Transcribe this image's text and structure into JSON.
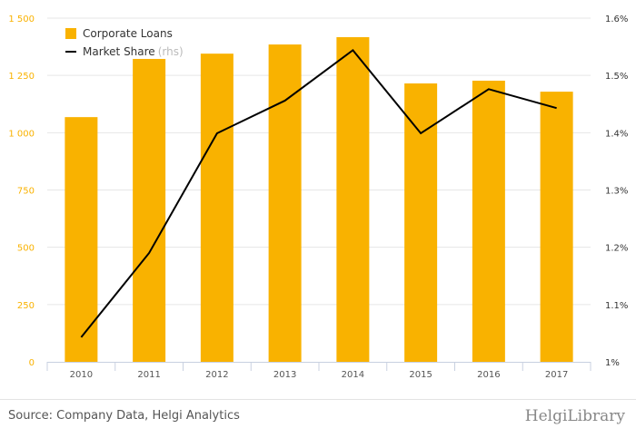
{
  "chart_data": {
    "type": "bar",
    "categories": [
      "2010",
      "2011",
      "2012",
      "2013",
      "2014",
      "2015",
      "2016",
      "2017"
    ],
    "series": [
      {
        "name": "Corporate Loans",
        "type": "bar",
        "axis": "left",
        "color": "#f9b200",
        "values": [
          1068,
          1322,
          1345,
          1385,
          1417,
          1215,
          1227,
          1179
        ]
      },
      {
        "name": "Market Share",
        "type": "line",
        "axis": "right",
        "color": "#000000",
        "values": [
          1.043,
          1.19,
          1.399,
          1.456,
          1.544,
          1.399,
          1.476,
          1.443
        ]
      }
    ],
    "left_axis": {
      "ylim": [
        0,
        1500
      ],
      "ticks": [
        0,
        250,
        500,
        750,
        1000,
        1250,
        1500
      ],
      "tick_labels": [
        "0",
        "250",
        "500",
        "750",
        "1 000",
        "1 250",
        "1 500"
      ],
      "color": "#f9b200"
    },
    "right_axis": {
      "ylim": [
        1.0,
        1.6
      ],
      "ticks": [
        1.0,
        1.1,
        1.2,
        1.3,
        1.4,
        1.5,
        1.6
      ],
      "tick_labels": [
        "1%",
        "1.1%",
        "1.2%",
        "1.3%",
        "1.4%",
        "1.5%",
        "1.6%"
      ]
    },
    "legend": {
      "items": [
        "Corporate Loans",
        "Market Share"
      ],
      "rhs_note": "(rhs)",
      "placement": "top-left"
    },
    "grid": true
  },
  "footer": {
    "source": "Source: Company Data, Helgi Analytics",
    "logo": "HelgiLibrary"
  }
}
